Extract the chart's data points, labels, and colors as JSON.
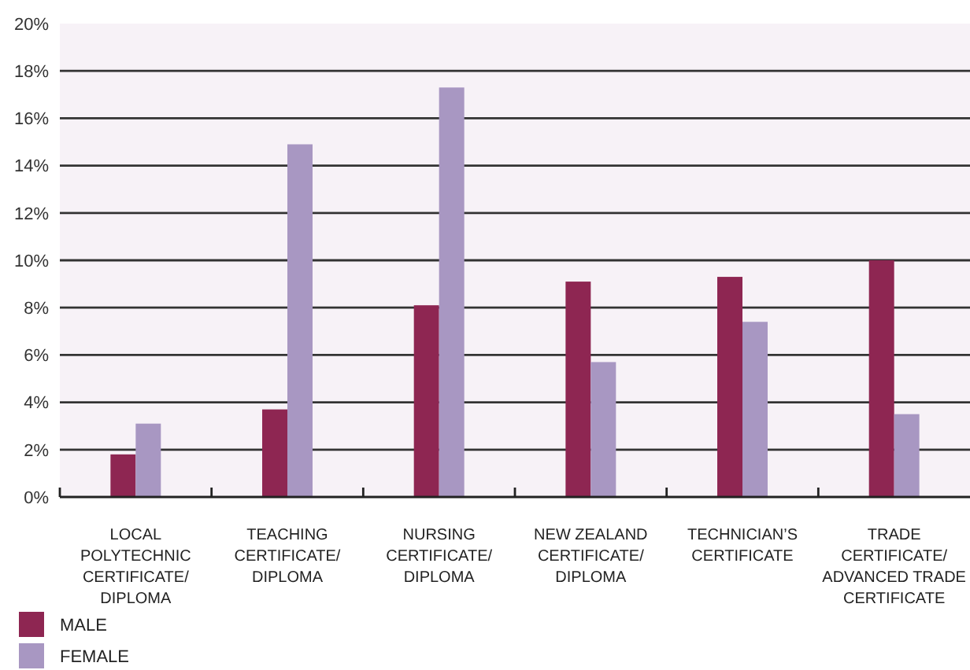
{
  "chart_data": {
    "type": "bar",
    "categories": [
      "LOCAL POLYTECHNIC CERTIFICATE/DIPLOMA",
      "TEACHING CERTIFICATE/DIPLOMA",
      "NURSING CERTIFICATE/DIPLOMA",
      "NEW ZEALAND CERTIFICATE/DIPLOMA",
      "TECHNICIAN’S CERTIFICATE",
      "TRADE CERTIFICATE/ADVANCED TRADE CERTIFICATE"
    ],
    "series": [
      {
        "name": "MALE",
        "color": "#8e2652",
        "values": [
          1.8,
          3.7,
          8.1,
          9.1,
          9.3,
          10.0
        ]
      },
      {
        "name": "FEMALE",
        "color": "#a897c2",
        "values": [
          3.1,
          14.9,
          17.3,
          5.7,
          7.4,
          3.5
        ]
      }
    ],
    "ylim": [
      0,
      20
    ],
    "yticks": [
      {
        "value": 0,
        "label": "0%"
      },
      {
        "value": 2,
        "label": "2%"
      },
      {
        "value": 4,
        "label": "4%"
      },
      {
        "value": 6,
        "label": "6%"
      },
      {
        "value": 8,
        "label": "8%"
      },
      {
        "value": 10,
        "label": "10%"
      },
      {
        "value": 12,
        "label": "12%"
      },
      {
        "value": 14,
        "label": "14%"
      },
      {
        "value": 16,
        "label": "16%"
      },
      {
        "value": 18,
        "label": "18%"
      },
      {
        "value": 20,
        "label": "20%"
      }
    ],
    "grid": "y",
    "legend": "bottom left"
  }
}
